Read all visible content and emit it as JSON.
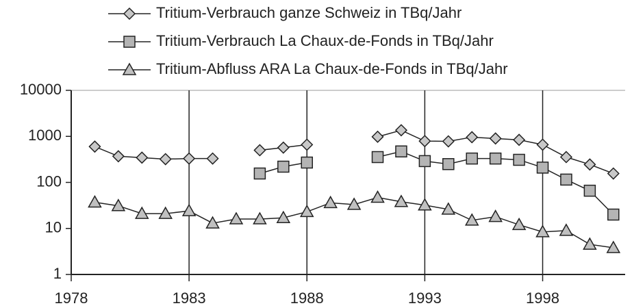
{
  "chart_data": {
    "type": "line",
    "log_y": true,
    "grid_x": true,
    "x": [
      1979,
      1980,
      1981,
      1982,
      1983,
      1984,
      1985,
      1986,
      1987,
      1988,
      1989,
      1990,
      1991,
      1992,
      1993,
      1994,
      1995,
      1996,
      1997,
      1998,
      1999,
      2000,
      2001
    ],
    "series": [
      {
        "name": "Tritium-Verbrauch ganze Schweiz in TBq/Jahr",
        "color": "#222222",
        "marker": "diamond",
        "marker_fill": "#c8c8c8",
        "values": [
          600,
          370,
          345,
          320,
          330,
          330,
          null,
          500,
          570,
          660,
          null,
          null,
          980,
          1360,
          790,
          780,
          960,
          900,
          840,
          660,
          355,
          245,
          156
        ]
      },
      {
        "name": "Tritium-Verbrauch La Chaux-de-Fonds in TBq/Jahr",
        "color": "#222222",
        "marker": "square",
        "marker_fill": "#b4b4b4",
        "values": [
          null,
          null,
          null,
          null,
          null,
          null,
          null,
          156,
          220,
          270,
          null,
          null,
          355,
          470,
          290,
          250,
          330,
          330,
          310,
          210,
          115,
          66,
          20
        ]
      },
      {
        "name": "Tritium-Abfluss ARA La Chaux-de-Fonds in TBq/Jahr",
        "color": "#222222",
        "marker": "triangle",
        "marker_fill": "#c0c0c0",
        "values": [
          37,
          31,
          21,
          21,
          24,
          13,
          16,
          16,
          17,
          23,
          36,
          33,
          47,
          38,
          32,
          26,
          15,
          18,
          12,
          8.4,
          9,
          4.5,
          3.8
        ]
      }
    ],
    "xlim": [
      1978,
      2001.5
    ],
    "xticks": [
      1978,
      1983,
      1988,
      1993,
      1998
    ],
    "ylim": [
      1,
      10000
    ],
    "yticks": [
      1,
      10,
      100,
      1000,
      10000
    ]
  }
}
